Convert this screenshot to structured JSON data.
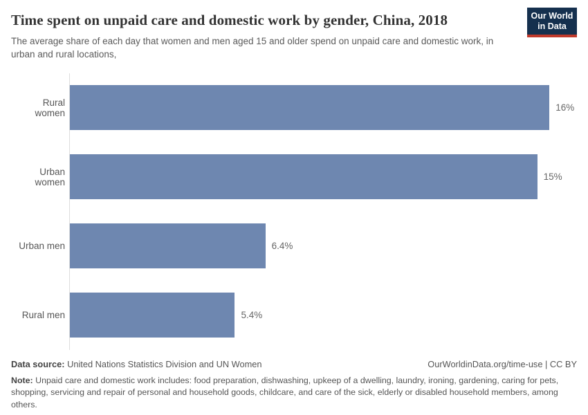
{
  "header": {
    "title": "Time spent on unpaid care and domestic work by gender, China, 2018",
    "subtitle": "The average share of each day that women and men aged 15 and older spend on unpaid care and domestic work, in urban and rural locations,",
    "logo": {
      "line1": "Our World",
      "line2": "in Data",
      "bg_color": "#15304e",
      "stripe_color": "#c0392b"
    }
  },
  "chart_data": {
    "type": "bar",
    "orientation": "horizontal",
    "title": "Time spent on unpaid care and domestic work by gender, China, 2018",
    "categories": [
      "Rural women",
      "Urban women",
      "Urban men",
      "Rural men"
    ],
    "values": [
      15.7,
      15.3,
      6.4,
      5.4
    ],
    "value_labels": [
      "16%",
      "15%",
      "6.4%",
      "5.4%"
    ],
    "unit": "% of day",
    "xlim": [
      0,
      16.6
    ],
    "grid": false,
    "legend": "none",
    "bar_color": "#6e87b0"
  },
  "footer": {
    "data_source_label": "Data source:",
    "data_source_text": " United Nations Statistics Division and UN Women",
    "attribution": "OurWorldinData.org/time-use | CC BY",
    "note_label": "Note:",
    "note_text": " Unpaid care and domestic work includes: food preparation, dishwashing, upkeep of a dwelling, laundry, ironing, gardening, caring for pets, shopping, servicing and repair of personal and household goods, childcare, and care of the sick, elderly or disabled household members, among others."
  }
}
